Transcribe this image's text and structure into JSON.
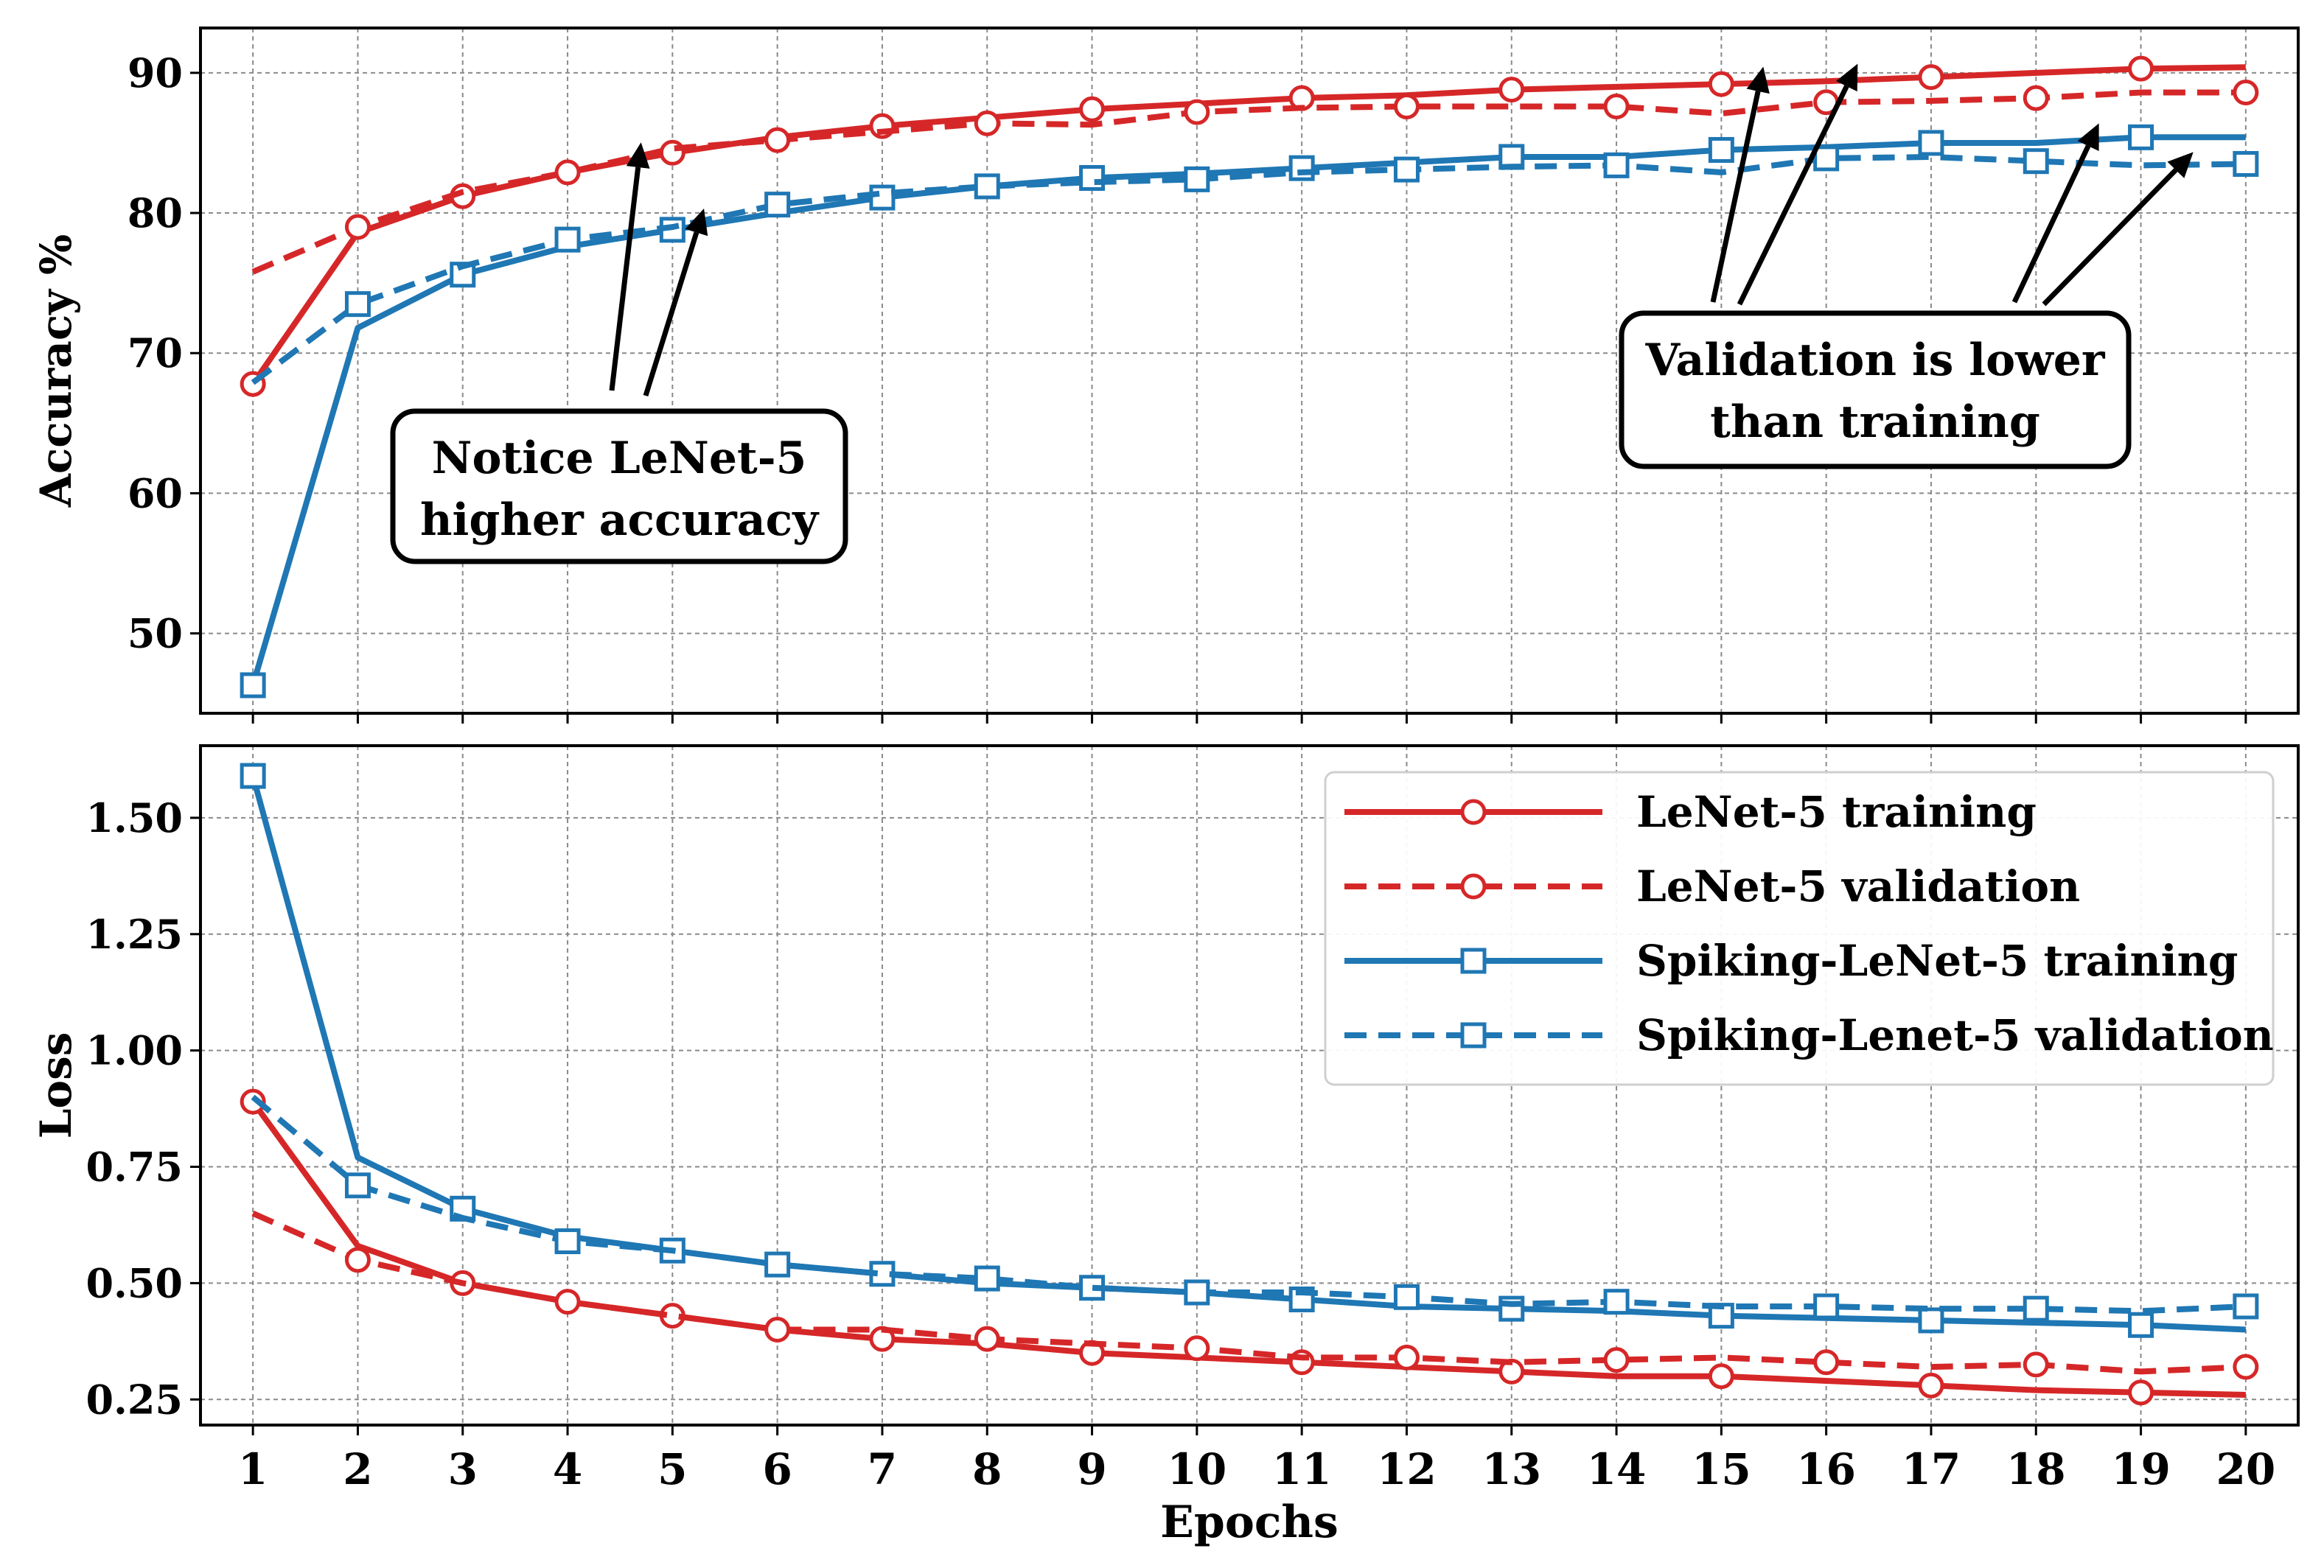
{
  "colors": {
    "lenet": "#d62728",
    "spiking": "#1f77b4",
    "grid": "#8a8a8a",
    "frame": "#000000"
  },
  "chart_data": [
    {
      "type": "line",
      "panel": "top",
      "xlabel": "",
      "ylabel": "Accuracy %",
      "x": [
        1,
        2,
        3,
        4,
        5,
        6,
        7,
        8,
        9,
        10,
        11,
        12,
        13,
        14,
        15,
        16,
        17,
        18,
        19,
        20
      ],
      "xlim": [
        0.5,
        20.5
      ],
      "ylim": [
        44.3,
        93.2
      ],
      "yticks": [
        50,
        60,
        70,
        80,
        90
      ],
      "ytick_labels": [
        "50",
        "60",
        "70",
        "80",
        "90"
      ],
      "grid": true,
      "series": [
        {
          "name": "LeNet-5 training",
          "color": "lenet",
          "dash": false,
          "marker": "circle",
          "marker_every": 2,
          "marker_offset": 0,
          "values": [
            67.8,
            78.6,
            81.2,
            82.9,
            84.3,
            85.4,
            86.2,
            86.8,
            87.4,
            87.8,
            88.2,
            88.4,
            88.8,
            89.0,
            89.2,
            89.4,
            89.7,
            90.0,
            90.3,
            90.4
          ]
        },
        {
          "name": "LeNet-5 validation",
          "color": "lenet",
          "dash": true,
          "marker": "circle",
          "marker_every": 2,
          "marker_offset": 1,
          "values": [
            75.8,
            79.0,
            81.5,
            82.9,
            84.6,
            85.2,
            85.8,
            86.4,
            86.3,
            87.2,
            87.5,
            87.6,
            87.6,
            87.6,
            87.1,
            87.9,
            88.0,
            88.2,
            88.6,
            88.6
          ]
        },
        {
          "name": "Spiking-LeNet-5 training",
          "color": "spiking",
          "dash": false,
          "marker": "square",
          "marker_every": 2,
          "marker_offset": 0,
          "values": [
            46.3,
            71.8,
            75.6,
            77.6,
            78.8,
            80.0,
            81.1,
            81.9,
            82.5,
            82.8,
            83.2,
            83.6,
            84.0,
            84.0,
            84.5,
            84.7,
            85.0,
            85.0,
            85.4,
            85.4
          ]
        },
        {
          "name": "Spiking-Lenet-5 validation",
          "color": "spiking",
          "dash": true,
          "marker": "square",
          "marker_every": 2,
          "marker_offset": 1,
          "values": [
            67.9,
            73.5,
            76.2,
            78.1,
            79.0,
            80.6,
            81.4,
            81.9,
            82.2,
            82.4,
            82.9,
            83.1,
            83.3,
            83.4,
            82.9,
            83.9,
            84.0,
            83.7,
            83.4,
            83.5
          ]
        }
      ],
      "annotations": [
        {
          "text_lines": [
            "Notice LeNet-5",
            "higher accuracy"
          ],
          "placement": "center-left",
          "arrows_to_epochs": [
            4.7,
            5.3
          ]
        },
        {
          "text_lines": [
            "Validation is lower",
            "than training"
          ],
          "placement": "center-right",
          "arrows_to_epochs": [
            15.4,
            16.3,
            18.6,
            19.5
          ]
        }
      ]
    },
    {
      "type": "line",
      "panel": "bottom",
      "xlabel": "Epochs",
      "ylabel": "Loss",
      "x": [
        1,
        2,
        3,
        4,
        5,
        6,
        7,
        8,
        9,
        10,
        11,
        12,
        13,
        14,
        15,
        16,
        17,
        18,
        19,
        20
      ],
      "xlim": [
        0.5,
        20.5
      ],
      "ylim": [
        0.195,
        1.655
      ],
      "yticks": [
        0.25,
        0.5,
        0.75,
        1.0,
        1.25,
        1.5
      ],
      "ytick_labels": [
        "0.25",
        "0.50",
        "0.75",
        "1.00",
        "1.25",
        "1.50"
      ],
      "xtick_labels": [
        "1",
        "2",
        "3",
        "4",
        "5",
        "6",
        "7",
        "8",
        "9",
        "10",
        "11",
        "12",
        "13",
        "14",
        "15",
        "16",
        "17",
        "18",
        "19",
        "20"
      ],
      "grid": true,
      "legend": {
        "placement": "upper-right",
        "entries": [
          "LeNet-5 training",
          "LeNet-5 validation",
          "Spiking-LeNet-5 training",
          "Spiking-Lenet-5 validation"
        ]
      },
      "series": [
        {
          "name": "LeNet-5 training",
          "color": "lenet",
          "dash": false,
          "marker": "circle",
          "marker_every": 2,
          "marker_offset": 0,
          "values": [
            0.89,
            0.58,
            0.5,
            0.46,
            0.43,
            0.4,
            0.38,
            0.37,
            0.35,
            0.34,
            0.33,
            0.32,
            0.31,
            0.3,
            0.3,
            0.29,
            0.28,
            0.27,
            0.265,
            0.26
          ]
        },
        {
          "name": "LeNet-5 validation",
          "color": "lenet",
          "dash": true,
          "marker": "circle",
          "marker_every": 2,
          "marker_offset": 1,
          "values": [
            0.65,
            0.55,
            0.5,
            0.46,
            0.43,
            0.4,
            0.4,
            0.38,
            0.37,
            0.36,
            0.34,
            0.34,
            0.33,
            0.335,
            0.34,
            0.33,
            0.32,
            0.325,
            0.31,
            0.32
          ]
        },
        {
          "name": "Spiking-LeNet-5 training",
          "color": "spiking",
          "dash": false,
          "marker": "square",
          "marker_every": 2,
          "marker_offset": 0,
          "values": [
            1.59,
            0.77,
            0.66,
            0.6,
            0.57,
            0.54,
            0.52,
            0.5,
            0.49,
            0.48,
            0.465,
            0.45,
            0.445,
            0.44,
            0.43,
            0.425,
            0.42,
            0.415,
            0.41,
            0.4
          ]
        },
        {
          "name": "Spiking-Lenet-5 validation",
          "color": "spiking",
          "dash": true,
          "marker": "square",
          "marker_every": 2,
          "marker_offset": 1,
          "values": [
            0.9,
            0.71,
            0.64,
            0.59,
            0.57,
            0.54,
            0.52,
            0.51,
            0.49,
            0.48,
            0.48,
            0.47,
            0.455,
            0.46,
            0.45,
            0.45,
            0.445,
            0.445,
            0.44,
            0.45
          ]
        }
      ]
    }
  ]
}
